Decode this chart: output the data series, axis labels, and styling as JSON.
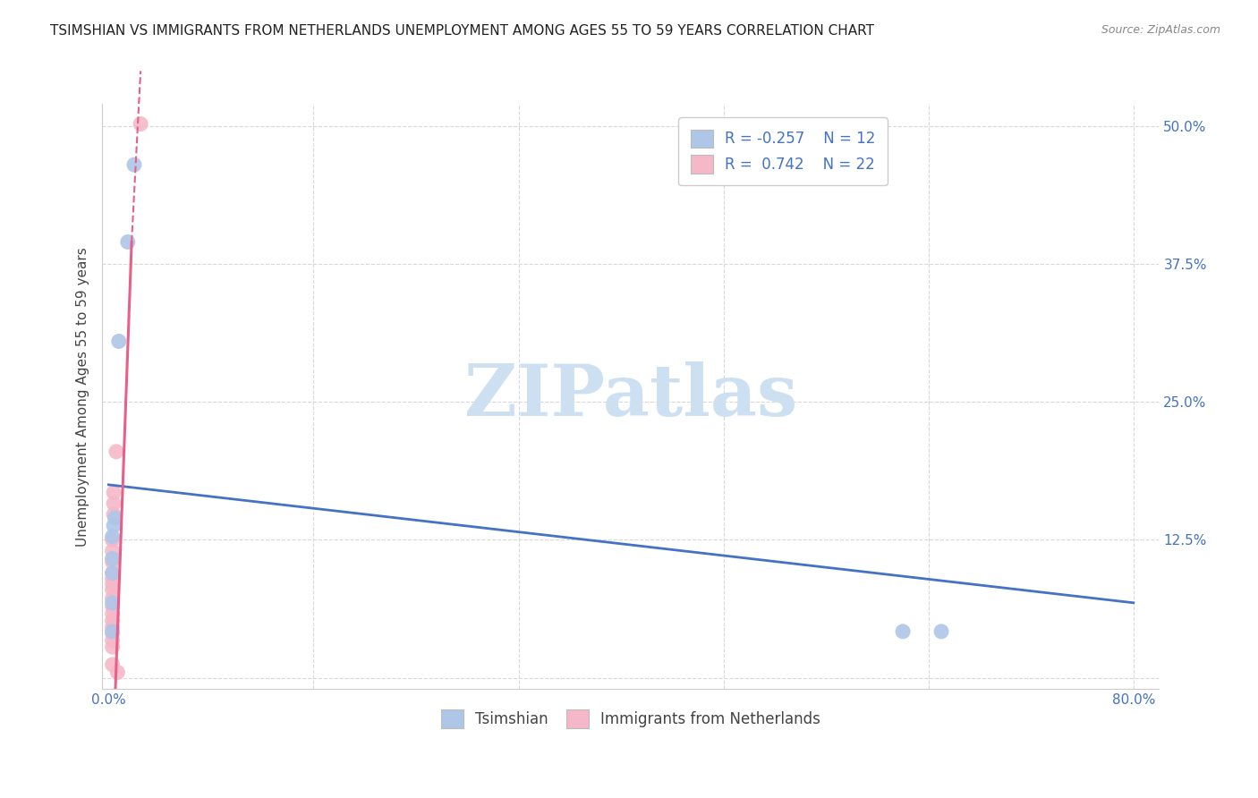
{
  "title": "TSIMSHIAN VS IMMIGRANTS FROM NETHERLANDS UNEMPLOYMENT AMONG AGES 55 TO 59 YEARS CORRELATION CHART",
  "source": "Source: ZipAtlas.com",
  "ylabel": "Unemployment Among Ages 55 to 59 years",
  "xlim": [
    -0.005,
    0.82
  ],
  "ylim": [
    -0.01,
    0.52
  ],
  "xtick_positions": [
    0.0,
    0.16,
    0.32,
    0.48,
    0.64,
    0.8
  ],
  "xticklabels": [
    "0.0%",
    "",
    "",
    "",
    "",
    "80.0%"
  ],
  "ytick_positions": [
    0.0,
    0.125,
    0.25,
    0.375,
    0.5
  ],
  "yticklabels": [
    "",
    "12.5%",
    "25.0%",
    "37.5%",
    "50.0%"
  ],
  "legend1_R": "-0.257",
  "legend1_N": "12",
  "legend2_R": "0.742",
  "legend2_N": "22",
  "tsimshian_color": "#aec6e8",
  "netherlands_color": "#f4b8c8",
  "tsimshian_scatter": [
    [
      0.02,
      0.465
    ],
    [
      0.015,
      0.395
    ],
    [
      0.008,
      0.305
    ],
    [
      0.005,
      0.145
    ],
    [
      0.004,
      0.138
    ],
    [
      0.003,
      0.128
    ],
    [
      0.003,
      0.108
    ],
    [
      0.003,
      0.095
    ],
    [
      0.003,
      0.068
    ],
    [
      0.003,
      0.042
    ],
    [
      0.62,
      0.042
    ],
    [
      0.65,
      0.042
    ]
  ],
  "netherlands_scatter": [
    [
      0.025,
      0.502
    ],
    [
      0.006,
      0.205
    ],
    [
      0.004,
      0.168
    ],
    [
      0.004,
      0.158
    ],
    [
      0.004,
      0.148
    ],
    [
      0.003,
      0.125
    ],
    [
      0.003,
      0.115
    ],
    [
      0.003,
      0.105
    ],
    [
      0.003,
      0.095
    ],
    [
      0.003,
      0.09
    ],
    [
      0.003,
      0.085
    ],
    [
      0.003,
      0.08
    ],
    [
      0.003,
      0.072
    ],
    [
      0.003,
      0.065
    ],
    [
      0.003,
      0.058
    ],
    [
      0.003,
      0.052
    ],
    [
      0.003,
      0.046
    ],
    [
      0.003,
      0.04
    ],
    [
      0.003,
      0.034
    ],
    [
      0.003,
      0.028
    ],
    [
      0.003,
      0.012
    ],
    [
      0.007,
      0.005
    ]
  ],
  "blue_trendline": [
    [
      0.0,
      0.175
    ],
    [
      0.8,
      0.068
    ]
  ],
  "pink_trendline_solid": [
    [
      0.0,
      -0.18
    ],
    [
      0.018,
      0.395
    ]
  ],
  "pink_trendline_dashed": [
    [
      0.018,
      0.395
    ],
    [
      0.025,
      0.55
    ]
  ],
  "watermark_text": "ZIPatlas",
  "watermark_color": "#cde0f2",
  "background_color": "#ffffff",
  "grid_color": "#d8d8d8",
  "tick_color": "#4472c4",
  "title_color": "#222222",
  "source_color": "#888888",
  "ylabel_color": "#444444",
  "title_fontsize": 11,
  "axis_label_fontsize": 11,
  "tick_fontsize": 11
}
